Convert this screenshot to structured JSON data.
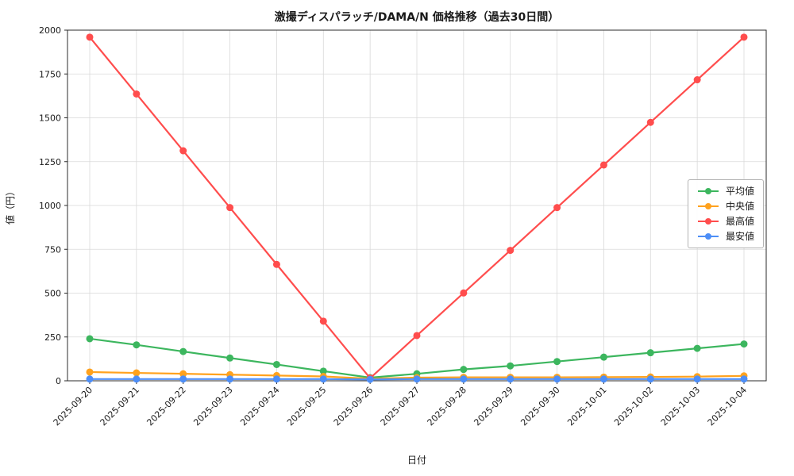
{
  "chart_data": {
    "type": "line",
    "title": "激撮ディスパラッチ/DAMA/N 価格推移（過去30日間）",
    "xlabel": "日付",
    "ylabel": "値（円）",
    "ylim": [
      0,
      2000
    ],
    "yticks": [
      0,
      250,
      500,
      750,
      1000,
      1250,
      1500,
      1750,
      2000
    ],
    "grid": true,
    "legend_position": "center-right",
    "x": [
      "2025-09-20",
      "2025-09-21",
      "2025-09-22",
      "2025-09-23",
      "2025-09-24",
      "2025-09-25",
      "2025-09-26",
      "2025-09-27",
      "2025-09-28",
      "2025-09-29",
      "2025-09-30",
      "2025-10-01",
      "2025-10-02",
      "2025-10-03",
      "2025-10-04"
    ],
    "series": [
      {
        "name": "平均値",
        "color": "#3cb65e",
        "values": [
          240,
          205,
          167,
          130,
          93,
          55,
          18,
          40,
          65,
          85,
          110,
          135,
          160,
          185,
          210
        ]
      },
      {
        "name": "中央値",
        "color": "#ffa21e",
        "values": [
          50,
          45,
          40,
          35,
          30,
          25,
          12,
          18,
          20,
          20,
          20,
          21,
          22,
          24,
          28
        ]
      },
      {
        "name": "最高値",
        "color": "#ff4d4d",
        "values": [
          1960,
          1636,
          1312,
          988,
          664,
          340,
          15,
          258,
          501,
          744,
          988,
          1231,
          1474,
          1717,
          1960
        ]
      },
      {
        "name": "最安値",
        "color": "#4d8ef7",
        "values": [
          10,
          10,
          10,
          10,
          10,
          10,
          8,
          10,
          10,
          10,
          10,
          10,
          10,
          10,
          10
        ]
      }
    ]
  }
}
